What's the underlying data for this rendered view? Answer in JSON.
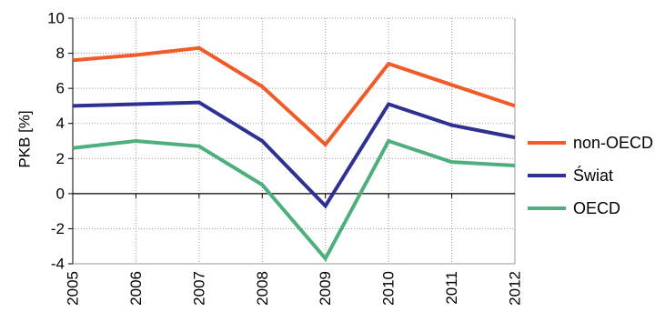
{
  "chart_data": {
    "type": "line",
    "title": "",
    "xlabel": "",
    "ylabel": "PKB [%]",
    "x": [
      "2005",
      "2006",
      "2007",
      "2008",
      "2009",
      "2010",
      "2011",
      "2012"
    ],
    "ylim": [
      -4,
      10
    ],
    "yticks": [
      "10",
      "8",
      "6",
      "4",
      "2",
      "0",
      "-2",
      "-4"
    ],
    "grid": true,
    "legend_position": "right",
    "series": [
      {
        "name": "non-OECD",
        "color": "#F15A29",
        "values": [
          7.6,
          7.9,
          8.3,
          6.1,
          2.8,
          7.4,
          6.2,
          5.0
        ]
      },
      {
        "name": "Świat",
        "color": "#2E3192",
        "values": [
          5.0,
          5.1,
          5.2,
          3.0,
          -0.7,
          5.1,
          3.9,
          3.2
        ]
      },
      {
        "name": "OECD",
        "color": "#4DAF7C",
        "values": [
          2.6,
          3.0,
          2.7,
          0.5,
          -3.7,
          3.0,
          1.8,
          1.6
        ]
      }
    ]
  }
}
